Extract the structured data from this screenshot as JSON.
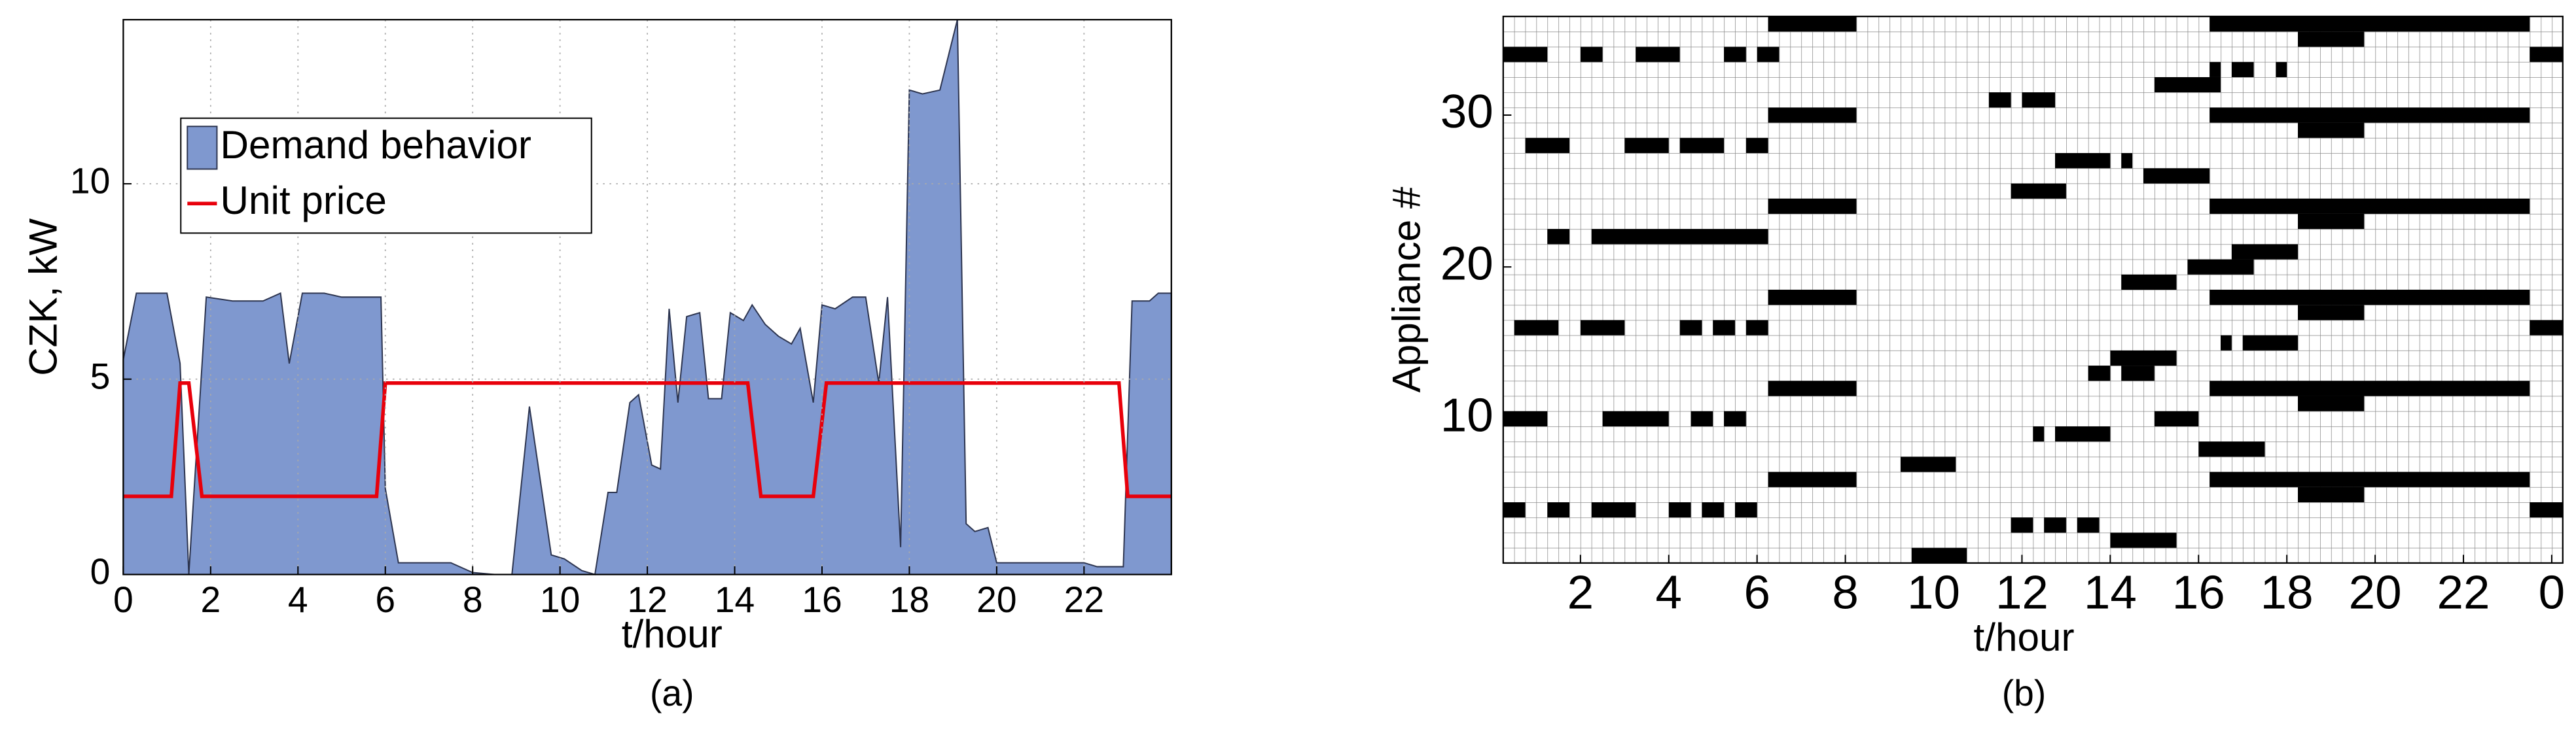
{
  "chart_data": [
    {
      "type": "area",
      "ylabel": "CZK, kW",
      "xlabel": "t/hour",
      "caption": "(a)",
      "xlim": [
        0,
        24
      ],
      "ylim": [
        0,
        14.2
      ],
      "xticks": [
        0,
        2,
        4,
        6,
        8,
        10,
        12,
        14,
        16,
        18,
        20,
        22
      ],
      "yticks": [
        0,
        5,
        10
      ],
      "grid": true,
      "legend": "upper left",
      "series": [
        {
          "name": "Demand behavior",
          "type": "area",
          "color": "#7f98cf",
          "x": [
            0,
            0.3,
            1.0,
            1.3,
            1.5,
            1.9,
            2.5,
            3.2,
            3.6,
            3.8,
            4.1,
            4.6,
            5.0,
            5.5,
            5.9,
            6.0,
            6.3,
            7.5,
            8.0,
            8.5,
            8.9,
            9.3,
            9.8,
            10.1,
            10.5,
            10.8,
            11.1,
            11.3,
            11.6,
            11.8,
            12.1,
            12.3,
            12.5,
            12.7,
            12.9,
            13.2,
            13.4,
            13.7,
            13.9,
            14.2,
            14.4,
            14.7,
            15.0,
            15.3,
            15.5,
            15.8,
            16.0,
            16.3,
            16.7,
            17.0,
            17.3,
            17.5,
            17.8,
            18.0,
            18.3,
            18.7,
            19.1,
            19.3,
            19.5,
            19.8,
            20.0,
            21.0,
            22.0,
            22.3,
            22.9,
            23.1,
            23.5,
            23.7,
            24.0
          ],
          "values": [
            5.5,
            7.2,
            7.2,
            5.4,
            0,
            7.1,
            7.0,
            7.0,
            7.2,
            5.4,
            7.2,
            7.2,
            7.1,
            7.1,
            7.1,
            2.2,
            0.3,
            0.3,
            0.05,
            0,
            0,
            4.3,
            0.5,
            0.4,
            0.1,
            0,
            2.1,
            2.1,
            4.4,
            4.6,
            2.8,
            2.7,
            6.8,
            4.4,
            6.6,
            6.7,
            4.5,
            4.5,
            6.7,
            6.5,
            6.9,
            6.4,
            6.1,
            5.9,
            6.3,
            4.4,
            6.9,
            6.8,
            7.1,
            7.1,
            4.9,
            7.1,
            0.7,
            12.4,
            12.3,
            12.4,
            14.2,
            1.3,
            1.1,
            1.2,
            0.3,
            0.3,
            0.3,
            0.2,
            0.2,
            7.0,
            7.0,
            7.2,
            7.2
          ]
        },
        {
          "name": "Unit price",
          "type": "line",
          "color": "#e8000b",
          "x": [
            0,
            1.1,
            1.3,
            1.5,
            1.8,
            5.8,
            6.0,
            14.3,
            14.6,
            15.8,
            16.1,
            22.8,
            23.0,
            24
          ],
          "values": [
            2,
            2,
            4.9,
            4.9,
            2,
            2,
            4.9,
            4.9,
            2,
            2,
            4.9,
            4.9,
            2,
            2
          ]
        }
      ]
    },
    {
      "type": "timeline",
      "ylabel": "Appliance #",
      "xlabel": "t/hour",
      "caption": "(b)",
      "xlim": [
        0.25,
        24.25
      ],
      "ylim": [
        0.5,
        36.5
      ],
      "xticks": [
        2,
        4,
        6,
        8,
        10,
        12,
        14,
        16,
        18,
        20,
        22,
        {
          "value": 24,
          "label": "0"
        }
      ],
      "yticks": [
        10,
        20,
        30
      ],
      "color": "#000000",
      "intervals": [
        [
          [
            9.5,
            10.75
          ]
        ],
        [
          [
            14,
            15.5
          ]
        ],
        [
          [
            11.75,
            12.25
          ],
          [
            12.5,
            13
          ],
          [
            13.25,
            13.75
          ]
        ],
        [
          [
            0.25,
            0.75
          ],
          [
            1.25,
            1.75
          ],
          [
            2.25,
            3.25
          ],
          [
            4,
            4.5
          ],
          [
            4.75,
            5.25
          ],
          [
            5.5,
            6
          ],
          [
            23.5,
            24.25
          ]
        ],
        [
          [
            18.25,
            19.75
          ]
        ],
        [
          [
            6.25,
            8.25
          ],
          [
            16.25,
            23.5
          ]
        ],
        [
          [
            9.25,
            10.5
          ]
        ],
        [
          [
            16,
            17.5
          ]
        ],
        [
          [
            12.25,
            12.5
          ],
          [
            12.75,
            14
          ]
        ],
        [
          [
            0.25,
            1.25
          ],
          [
            2.5,
            4
          ],
          [
            4.5,
            5
          ],
          [
            5.25,
            5.75
          ],
          [
            15,
            16
          ]
        ],
        [
          [
            18.25,
            19.75
          ]
        ],
        [
          [
            6.25,
            8.25
          ],
          [
            16.25,
            23.5
          ]
        ],
        [
          [
            13.5,
            14
          ],
          [
            14.25,
            15
          ]
        ],
        [
          [
            14,
            15.5
          ]
        ],
        [
          [
            16.5,
            16.75
          ],
          [
            17,
            18.25
          ]
        ],
        [
          [
            0.5,
            1.5
          ],
          [
            2,
            3
          ],
          [
            4.25,
            4.75
          ],
          [
            5,
            5.5
          ],
          [
            5.75,
            6.25
          ],
          [
            23.5,
            24.25
          ]
        ],
        [
          [
            18.25,
            19.75
          ]
        ],
        [
          [
            6.25,
            8.25
          ],
          [
            16.25,
            23.5
          ]
        ],
        [
          [
            14.25,
            15.5
          ]
        ],
        [
          [
            15.75,
            17.25
          ]
        ],
        [
          [
            16.75,
            18.25
          ]
        ],
        [
          [
            1.25,
            1.75
          ],
          [
            2.25,
            6.25
          ]
        ],
        [
          [
            18.25,
            19.75
          ]
        ],
        [
          [
            6.25,
            8.25
          ],
          [
            16.25,
            23.5
          ]
        ],
        [
          [
            11.75,
            13
          ]
        ],
        [
          [
            14.75,
            16.25
          ]
        ],
        [
          [
            12.75,
            14
          ],
          [
            14.25,
            14.5
          ]
        ],
        [
          [
            0.75,
            1.75
          ],
          [
            3,
            4
          ],
          [
            4.25,
            5.25
          ],
          [
            5.75,
            6.25
          ]
        ],
        [
          [
            18.25,
            19.75
          ]
        ],
        [
          [
            6.25,
            8.25
          ],
          [
            16.25,
            23.5
          ]
        ],
        [
          [
            11.25,
            11.75
          ],
          [
            12,
            12.75
          ]
        ],
        [
          [
            15,
            16.5
          ]
        ],
        [
          [
            16.25,
            16.5
          ],
          [
            16.75,
            17.25
          ],
          [
            17.75,
            18
          ]
        ],
        [
          [
            0.25,
            1.25
          ],
          [
            2,
            2.5
          ],
          [
            3.25,
            4.25
          ],
          [
            5.25,
            5.75
          ],
          [
            6,
            6.5
          ],
          [
            23.5,
            24.25
          ]
        ],
        [
          [
            18.25,
            19.75
          ]
        ],
        [
          [
            6.25,
            8.25
          ],
          [
            16.25,
            23.5
          ]
        ]
      ]
    }
  ]
}
